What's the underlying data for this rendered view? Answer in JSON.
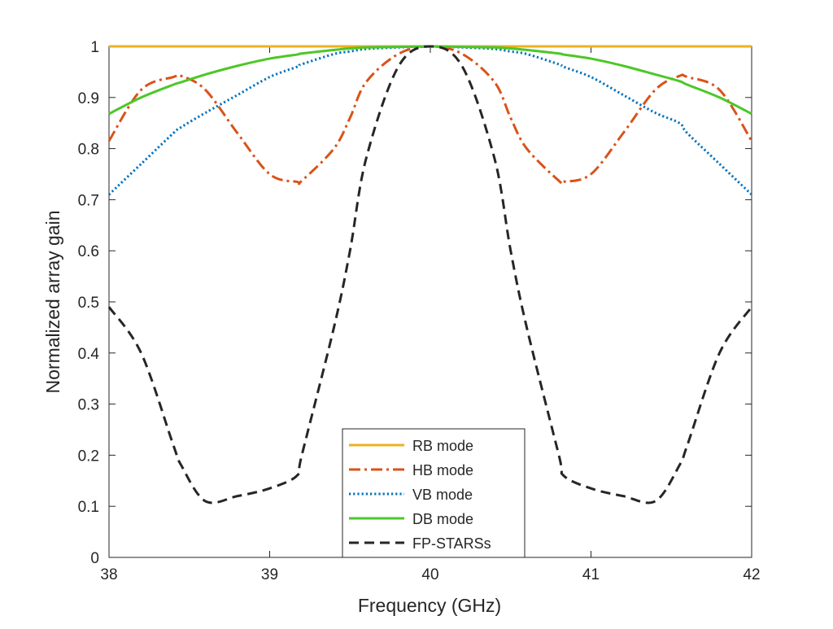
{
  "chart_data": {
    "type": "line",
    "title": "",
    "xlabel": "Frequency (GHz)",
    "ylabel": "Normalized array gain",
    "xlim": [
      38,
      42
    ],
    "ylim": [
      0,
      1
    ],
    "x_ticks": [
      38,
      39,
      40,
      41,
      42
    ],
    "x_tick_labels": [
      "38",
      "39",
      "40",
      "41",
      "42"
    ],
    "y_ticks": [
      0,
      0.1,
      0.2,
      0.3,
      0.4,
      0.5,
      0.6,
      0.7,
      0.8,
      0.9,
      1
    ],
    "y_tick_labels": [
      "0",
      "0.1",
      "0.2",
      "0.3",
      "0.4",
      "0.5",
      "0.6",
      "0.7",
      "0.8",
      "0.9",
      "1"
    ],
    "grid": false,
    "legend_position": "bottom-center",
    "x": [
      38.0,
      38.2,
      38.4,
      38.45,
      38.6,
      38.8,
      39.0,
      39.17,
      39.2,
      39.4,
      39.5,
      39.6,
      39.8,
      40.0,
      40.2,
      40.4,
      40.5,
      40.6,
      40.8,
      40.83,
      41.0,
      41.2,
      41.4,
      41.55,
      41.6,
      41.8,
      42.0
    ],
    "series": [
      {
        "name": "RB mode",
        "color": "#EDB120",
        "dash": "solid",
        "values": [
          1,
          1,
          1,
          1,
          1,
          1,
          1,
          1,
          1,
          1,
          1,
          1,
          1,
          1,
          1,
          1,
          1,
          1,
          1,
          1,
          1,
          1,
          1,
          1,
          1,
          1,
          1
        ]
      },
      {
        "name": "HB mode",
        "color": "#D95319",
        "dash": "dashdot",
        "values": [
          0.815,
          0.915,
          0.94,
          0.942,
          0.915,
          0.83,
          0.75,
          0.735,
          0.737,
          0.8,
          0.86,
          0.93,
          0.985,
          1.0,
          0.985,
          0.93,
          0.86,
          0.8,
          0.737,
          0.735,
          0.75,
          0.83,
          0.915,
          0.942,
          0.94,
          0.915,
          0.815
        ]
      },
      {
        "name": "VB mode",
        "color": "#0072BD",
        "dash": "dotted",
        "values": [
          0.71,
          0.77,
          0.83,
          0.842,
          0.87,
          0.905,
          0.94,
          0.96,
          0.965,
          0.985,
          0.99,
          0.995,
          0.998,
          1.0,
          0.998,
          0.995,
          0.99,
          0.985,
          0.965,
          0.96,
          0.94,
          0.905,
          0.87,
          0.85,
          0.83,
          0.77,
          0.71
        ]
      },
      {
        "name": "DB mode",
        "color": "#4DC727",
        "dash": "solid",
        "values": [
          0.868,
          0.9,
          0.925,
          0.93,
          0.945,
          0.962,
          0.976,
          0.984,
          0.986,
          0.993,
          0.996,
          0.998,
          0.999,
          1.0,
          0.999,
          0.998,
          0.996,
          0.993,
          0.986,
          0.984,
          0.976,
          0.962,
          0.945,
          0.932,
          0.925,
          0.9,
          0.868
        ]
      },
      {
        "name": "FP-STARSs",
        "color": "#262626",
        "dash": "dashed",
        "values": [
          0.49,
          0.4,
          0.22,
          0.18,
          0.11,
          0.12,
          0.135,
          0.16,
          0.2,
          0.45,
          0.6,
          0.78,
          0.96,
          1.0,
          0.96,
          0.78,
          0.6,
          0.45,
          0.2,
          0.16,
          0.135,
          0.12,
          0.11,
          0.18,
          0.22,
          0.4,
          0.49
        ]
      }
    ]
  }
}
